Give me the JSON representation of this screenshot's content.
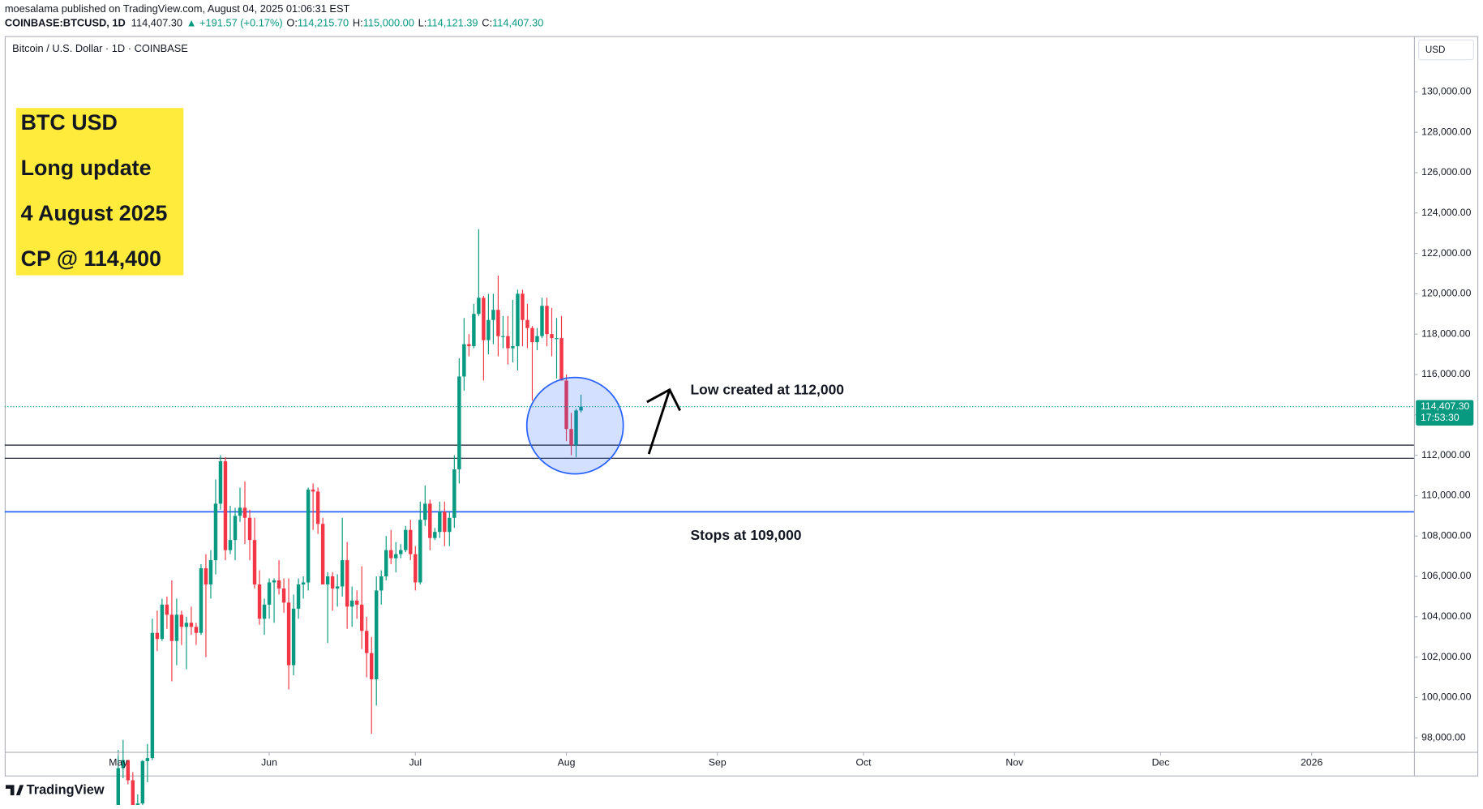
{
  "header": {
    "publisher": "moesalama published on TradingView.com, August 04, 2025 01:06:31 EST",
    "symbol": "COINBASE:BTCUSD, 1D",
    "price": "114,407.30",
    "change": "▲ +191.57 (+0.17%)",
    "ohlc": [
      {
        "label": "O:",
        "value": "114,215.70"
      },
      {
        "label": "H:",
        "value": "115,000.00"
      },
      {
        "label": "L:",
        "value": "114,121.39"
      },
      {
        "label": "C:",
        "value": "114,407.30"
      }
    ]
  },
  "chart_data": {
    "type": "candlestick",
    "title": "Bitcoin / U.S. Dollar · 1D · COINBASE",
    "currency": "USD",
    "up_color": "#089981",
    "down_color": "#f23645",
    "open": [
      94200,
      96500,
      96900,
      95900,
      94300,
      94750,
      96850,
      97000,
      103200,
      102900,
      104600,
      104100,
      102800,
      104100,
      103500,
      103700,
      103500,
      103200,
      106400,
      105600,
      106800,
      109600,
      111700,
      107300,
      107800,
      109000,
      109400,
      108900,
      107800,
      105600,
      103900,
      104600,
      105700,
      105800,
      105400,
      104700,
      101600,
      104400,
      105600,
      105700,
      110300,
      110200,
      108600,
      105600,
      106000,
      105400,
      105500,
      106800,
      104500,
      104800,
      104600,
      103300,
      102200,
      100900,
      105300,
      106000,
      107300,
      106900,
      107100,
      107300,
      108300,
      107100,
      105700,
      108800,
      109600,
      107900,
      108200,
      109200,
      108200,
      108900,
      111300,
      115900,
      117500,
      117400,
      119000,
      119800,
      117700,
      118700,
      119200,
      117900,
      117900,
      117300,
      117400,
      120000,
      118700,
      118300,
      117600,
      117900,
      119400,
      118000,
      117800,
      117800,
      115700,
      113300,
      112500,
      114215.7
    ],
    "high": [
      97400,
      97900,
      96900,
      96300,
      95200,
      96900,
      97700,
      103900,
      104300,
      104900,
      105000,
      105800,
      104900,
      104300,
      104000,
      104500,
      103700,
      106600,
      107100,
      107300,
      110800,
      112000,
      111900,
      109500,
      109400,
      110400,
      110700,
      109300,
      108900,
      106300,
      104900,
      105900,
      105900,
      106800,
      105900,
      105900,
      105100,
      105900,
      106000,
      110400,
      110600,
      110400,
      108900,
      106200,
      106200,
      106100,
      108900,
      107700,
      105500,
      105300,
      106500,
      104000,
      103000,
      106000,
      106300,
      108000,
      108300,
      107700,
      107600,
      108500,
      108800,
      107500,
      109700,
      110500,
      109800,
      108400,
      109700,
      109700,
      109200,
      112000,
      116800,
      118800,
      118000,
      119500,
      123200,
      119900,
      120000,
      120000,
      120900,
      118900,
      118900,
      119700,
      120200,
      120200,
      119500,
      118400,
      118300,
      119800,
      119800,
      119300,
      118800,
      118900,
      116000,
      114100,
      114300,
      115000
    ],
    "low": [
      94100,
      96000,
      95700,
      94100,
      93500,
      93400,
      95800,
      96900,
      102300,
      102800,
      103400,
      100800,
      101600,
      102600,
      101400,
      103100,
      102600,
      103100,
      102000,
      104900,
      106100,
      109300,
      106800,
      107100,
      106800,
      108700,
      107600,
      106800,
      105400,
      103600,
      103100,
      103900,
      103700,
      105100,
      104200,
      100400,
      101100,
      103900,
      104900,
      105300,
      108300,
      108100,
      105600,
      102700,
      104300,
      104500,
      105000,
      103400,
      103500,
      103900,
      102400,
      101000,
      98200,
      99600,
      104600,
      105800,
      106600,
      106200,
      106900,
      107200,
      106800,
      105300,
      105600,
      108500,
      107300,
      107800,
      107900,
      107500,
      107500,
      108400,
      110600,
      115200,
      116900,
      117300,
      118900,
      115700,
      117000,
      117500,
      116900,
      117300,
      116500,
      116600,
      116200,
      117400,
      117300,
      114700,
      117200,
      117800,
      117400,
      116900,
      115800,
      115700,
      112700,
      112000,
      111900,
      114121.39
    ],
    "close": [
      96500,
      96900,
      95900,
      94300,
      94750,
      96850,
      97000,
      103200,
      102900,
      104600,
      104100,
      102800,
      104100,
      103500,
      103700,
      103500,
      103200,
      106400,
      105600,
      106800,
      109600,
      111700,
      107300,
      107800,
      109000,
      109400,
      108900,
      107800,
      105600,
      103900,
      104600,
      105700,
      105800,
      105400,
      104700,
      101600,
      104400,
      105600,
      105700,
      110300,
      110200,
      108600,
      105600,
      106000,
      105400,
      105500,
      106800,
      104500,
      104800,
      104600,
      103300,
      102200,
      100900,
      105300,
      106000,
      107300,
      106900,
      107100,
      107300,
      108300,
      107100,
      105700,
      108800,
      109600,
      107900,
      108200,
      109200,
      108200,
      108900,
      111300,
      115900,
      117500,
      117400,
      119000,
      119800,
      117700,
      118700,
      119200,
      117900,
      117900,
      117300,
      117400,
      120000,
      118700,
      118300,
      117600,
      117900,
      119400,
      118000,
      117800,
      117800,
      115700,
      113300,
      112500,
      114215.7,
      114407.3
    ],
    "xlim": [
      -23.3,
      266
    ],
    "xticks": [
      {
        "value": 0,
        "label": "May"
      },
      {
        "value": 31,
        "label": "Jun"
      },
      {
        "value": 61,
        "label": "Jul"
      },
      {
        "value": 92,
        "label": "Aug"
      },
      {
        "value": 123,
        "label": "Sep"
      },
      {
        "value": 153,
        "label": "Oct"
      },
      {
        "value": 184,
        "label": "Nov"
      },
      {
        "value": 214,
        "label": "Dec"
      },
      {
        "value": 245,
        "label": "2026"
      }
    ],
    "ylim": [
      97307,
      132763
    ],
    "yticks": [
      {
        "value": 98000,
        "label": "98,000.00"
      },
      {
        "value": 100000,
        "label": "100,000.00"
      },
      {
        "value": 102000,
        "label": "102,000.00"
      },
      {
        "value": 104000,
        "label": "104,000.00"
      },
      {
        "value": 106000,
        "label": "106,000.00"
      },
      {
        "value": 108000,
        "label": "108,000.00"
      },
      {
        "value": 110000,
        "label": "110,000.00"
      },
      {
        "value": 112000,
        "label": "112,000.00"
      },
      {
        "value": 114000,
        "label": "114,000.00"
      },
      {
        "value": 116000,
        "label": "116,000.00"
      },
      {
        "value": 118000,
        "label": "118,000.00"
      },
      {
        "value": 120000,
        "label": "120,000.00"
      },
      {
        "value": 122000,
        "label": "122,000.00"
      },
      {
        "value": 124000,
        "label": "124,000.00"
      },
      {
        "value": 126000,
        "label": "126,000.00"
      },
      {
        "value": 128000,
        "label": "128,000.00"
      },
      {
        "value": 130000,
        "label": "130,000.00"
      }
    ],
    "last_price": {
      "value": 114407.3,
      "label": "114,407.30"
    },
    "countdown": "17:53:30",
    "levels": [
      {
        "value": 112500,
        "color": "#131722"
      },
      {
        "value": 111850,
        "color": "#131722"
      },
      {
        "value": 109200,
        "color": "#2962ff"
      }
    ],
    "annotations": {
      "box": [
        "BTC USD",
        "Long update",
        "4 August 2025",
        "CP @ 114,400"
      ],
      "low_note": "Low created at 112,000",
      "stops_note": "Stops at 109,000"
    }
  },
  "footer": {
    "brand": "TradingView"
  }
}
